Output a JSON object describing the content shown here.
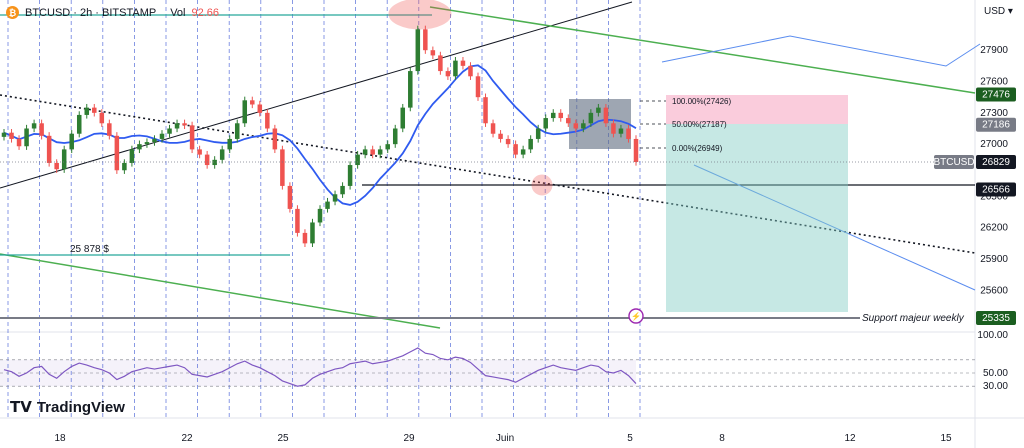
{
  "header": {
    "symbol_line": "BTCUSD · 2h · BITSTAMP",
    "vol_label": "Vol",
    "vol_value": "92.66"
  },
  "currency_menu": "USD",
  "brand": "TradingView",
  "colors": {
    "up": "#26a69a",
    "down": "#ef5350",
    "candle_shown": "#2e7d32",
    "ma": "#2f5bf0",
    "green_line": "#4caf50",
    "rsi": "#7e57c2",
    "price_tag": "#131722",
    "support_tag": "#1b5e20"
  },
  "chart_data": {
    "type": "candlestick",
    "symbol": "BTCUSD",
    "timeframe": "2h",
    "exchange": "BITSTAMP",
    "ylim": [
      25335,
      28285
    ],
    "x_ticks": [
      "18",
      "22",
      "25",
      "29",
      "Juin",
      "5",
      "8",
      "12",
      "15"
    ],
    "y_ticks": [
      27900,
      27600,
      27300,
      27000,
      26800,
      26500,
      26200,
      25900,
      25600,
      25335
    ],
    "price_labels": [
      {
        "label": "27476",
        "value": 27476,
        "style": "green"
      },
      {
        "label": "27186",
        "value": 27186,
        "style": "grey"
      },
      {
        "label": "BTCUSD",
        "value": 26829,
        "style": "grey"
      },
      {
        "label": "26829",
        "value": 26829,
        "style": "dark"
      },
      {
        "label": "26566",
        "value": 26566,
        "style": "dark"
      },
      {
        "label": "25335",
        "value": 25335,
        "style": "green"
      }
    ],
    "annotations": {
      "low_label": "25 878 $",
      "support_label": "Support majeur weekly",
      "fib_100": "100.00%(27426)",
      "fib_50": "50.00%(27187)",
      "fib_0": "0.00%(26949)"
    },
    "candles_close": [
      27110,
      27050,
      26980,
      27150,
      27200,
      27080,
      26820,
      26760,
      26950,
      27100,
      27280,
      27350,
      27300,
      27200,
      27080,
      26750,
      26820,
      26950,
      27000,
      27020,
      27050,
      27100,
      27150,
      27200,
      27180,
      26950,
      26900,
      26800,
      26850,
      26950,
      27050,
      27200,
      27420,
      27380,
      27300,
      27150,
      26950,
      26600,
      26380,
      26150,
      26050,
      26250,
      26380,
      26450,
      26520,
      26600,
      26800,
      26900,
      26950,
      26900,
      26950,
      27000,
      27150,
      27350,
      27700,
      28100,
      27900,
      27850,
      27700,
      27650,
      27800,
      27750,
      27650,
      27450,
      27200,
      27100,
      27050,
      27000,
      26900,
      26950,
      27050,
      27150,
      27250,
      27300,
      27250,
      27200,
      27150,
      27200,
      27300,
      27350,
      27200,
      27100,
      27150,
      27050,
      26829
    ],
    "rsi": {
      "levels": [
        70,
        50,
        30
      ],
      "tick_labels": [
        "100.00",
        "50.00",
        "30.00"
      ],
      "values": [
        55,
        52,
        45,
        50,
        58,
        60,
        48,
        42,
        52,
        60,
        65,
        62,
        58,
        55,
        50,
        40,
        45,
        52,
        55,
        58,
        56,
        58,
        60,
        62,
        58,
        48,
        46,
        44,
        48,
        52,
        58,
        64,
        68,
        62,
        58,
        52,
        46,
        38,
        34,
        30,
        32,
        42,
        48,
        52,
        56,
        58,
        64,
        66,
        68,
        64,
        66,
        68,
        72,
        76,
        82,
        88,
        80,
        78,
        72,
        70,
        74,
        72,
        66,
        56,
        46,
        44,
        42,
        40,
        36,
        42,
        48,
        54,
        58,
        62,
        58,
        56,
        54,
        58,
        62,
        60,
        52,
        50,
        54,
        46,
        34
      ]
    }
  }
}
